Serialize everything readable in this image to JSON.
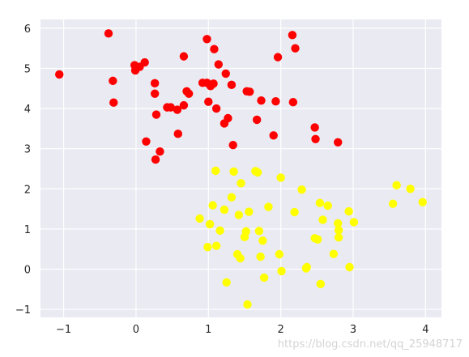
{
  "chart_data": {
    "type": "scatter",
    "title": "",
    "xlabel": "",
    "ylabel": "",
    "xlim": [
      -1.32,
      4.22
    ],
    "ylim": [
      -1.2,
      6.22
    ],
    "xticks": [
      -1,
      0,
      1,
      2,
      3,
      4
    ],
    "yticks": [
      -1,
      0,
      1,
      2,
      3,
      4,
      5,
      6
    ],
    "grid": true,
    "legend": "none",
    "colors": {
      "background": "#eaeaf2",
      "grid": "#ffffff",
      "red": "#ff0000",
      "yellow": "#ffff00"
    },
    "series": [
      {
        "color": "#ff0000",
        "points": [
          [
            -1.06,
            4.85
          ],
          [
            -0.38,
            5.87
          ],
          [
            -0.32,
            4.69
          ],
          [
            -0.31,
            4.15
          ],
          [
            -0.02,
            5.08
          ],
          [
            -0.01,
            4.95
          ],
          [
            0.05,
            5.04
          ],
          [
            0.12,
            5.15
          ],
          [
            0.14,
            3.18
          ],
          [
            0.26,
            4.63
          ],
          [
            0.26,
            4.37
          ],
          [
            0.27,
            2.73
          ],
          [
            0.28,
            3.85
          ],
          [
            0.33,
            2.93
          ],
          [
            0.43,
            4.03
          ],
          [
            0.48,
            4.03
          ],
          [
            0.57,
            3.97
          ],
          [
            0.58,
            3.37
          ],
          [
            0.66,
            5.3
          ],
          [
            0.66,
            4.08
          ],
          [
            0.7,
            4.43
          ],
          [
            0.73,
            4.37
          ],
          [
            0.92,
            4.64
          ],
          [
            0.98,
            4.64
          ],
          [
            0.98,
            5.73
          ],
          [
            1.0,
            4.17
          ],
          [
            1.03,
            4.56
          ],
          [
            1.07,
            4.62
          ],
          [
            1.08,
            5.48
          ],
          [
            1.11,
            4.0
          ],
          [
            1.14,
            5.1
          ],
          [
            1.22,
            3.63
          ],
          [
            1.24,
            4.87
          ],
          [
            1.27,
            3.76
          ],
          [
            1.32,
            4.59
          ],
          [
            1.34,
            3.09
          ],
          [
            1.53,
            4.43
          ],
          [
            1.57,
            4.42
          ],
          [
            1.67,
            3.72
          ],
          [
            1.73,
            4.2
          ],
          [
            1.9,
            3.33
          ],
          [
            1.93,
            4.18
          ],
          [
            1.96,
            5.28
          ],
          [
            2.16,
            5.83
          ],
          [
            2.17,
            4.16
          ],
          [
            2.2,
            5.5
          ],
          [
            2.47,
            3.53
          ],
          [
            2.48,
            3.24
          ],
          [
            2.79,
            3.16
          ]
        ]
      },
      {
        "color": "#ffff00",
        "points": [
          [
            0.88,
            1.26
          ],
          [
            0.99,
            0.55
          ],
          [
            1.02,
            1.12
          ],
          [
            1.06,
            1.59
          ],
          [
            1.1,
            2.45
          ],
          [
            1.11,
            0.58
          ],
          [
            1.16,
            0.96
          ],
          [
            1.22,
            1.48
          ],
          [
            1.25,
            -0.33
          ],
          [
            1.32,
            1.79
          ],
          [
            1.35,
            2.43
          ],
          [
            1.4,
            0.37
          ],
          [
            1.42,
            1.35
          ],
          [
            1.44,
            0.27
          ],
          [
            1.45,
            2.14
          ],
          [
            1.5,
            0.8
          ],
          [
            1.52,
            0.94
          ],
          [
            1.54,
            -0.88
          ],
          [
            1.56,
            1.43
          ],
          [
            1.65,
            2.44
          ],
          [
            1.68,
            2.41
          ],
          [
            1.7,
            0.95
          ],
          [
            1.72,
            0.31
          ],
          [
            1.75,
            0.71
          ],
          [
            1.77,
            -0.21
          ],
          [
            1.83,
            1.55
          ],
          [
            1.98,
            0.37
          ],
          [
            2.0,
            2.28
          ],
          [
            2.01,
            -0.05
          ],
          [
            2.19,
            1.42
          ],
          [
            2.29,
            1.98
          ],
          [
            2.35,
            0.02
          ],
          [
            2.36,
            0.05
          ],
          [
            2.47,
            0.77
          ],
          [
            2.51,
            0.74
          ],
          [
            2.54,
            1.65
          ],
          [
            2.55,
            -0.37
          ],
          [
            2.58,
            1.23
          ],
          [
            2.65,
            1.58
          ],
          [
            2.73,
            0.38
          ],
          [
            2.79,
            1.14
          ],
          [
            2.8,
            0.79
          ],
          [
            2.8,
            0.97
          ],
          [
            2.94,
            1.44
          ],
          [
            2.95,
            0.05
          ],
          [
            3.01,
            1.17
          ],
          [
            3.55,
            1.63
          ],
          [
            3.6,
            2.09
          ],
          [
            3.79,
            2.0
          ],
          [
            3.96,
            1.67
          ]
        ]
      }
    ]
  },
  "watermark": "https://blog.csdn.net/qq_25948717"
}
